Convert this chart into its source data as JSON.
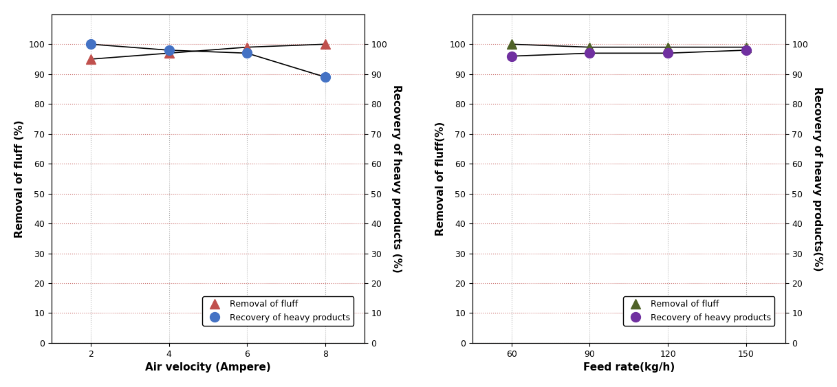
{
  "left": {
    "x": [
      2,
      4,
      6,
      8
    ],
    "removal_fluff": [
      95,
      97,
      99,
      100
    ],
    "recovery_heavy": [
      100,
      98,
      97,
      89
    ],
    "xlabel": "Air velocity (Ampere)",
    "ylabel_left": "Removal of fluff (%)",
    "ylabel_right": "Recovery of heavy products (%)",
    "fluff_color": "#C0504D",
    "heavy_color": "#4472C4",
    "line_color": "#000000",
    "xlim": [
      1,
      9
    ],
    "xticks": [
      2,
      4,
      6,
      8
    ],
    "ylim": [
      0,
      110
    ],
    "yticks": [
      0,
      10,
      20,
      30,
      40,
      50,
      60,
      70,
      80,
      90,
      100
    ]
  },
  "right": {
    "x": [
      60,
      90,
      120,
      150
    ],
    "removal_fluff": [
      100,
      99,
      99,
      99
    ],
    "recovery_heavy": [
      96,
      97,
      97,
      98
    ],
    "xlabel": "Feed rate(kg/h)",
    "ylabel_left": "Removal of fluff(%)",
    "ylabel_right": "Recovery of heavy products(%)",
    "fluff_color": "#4F6228",
    "heavy_color": "#7030A0",
    "line_color": "#000000",
    "xlim": [
      45,
      165
    ],
    "xticks": [
      60,
      90,
      120,
      150
    ],
    "ylim": [
      0,
      110
    ],
    "yticks": [
      0,
      10,
      20,
      30,
      40,
      50,
      60,
      70,
      80,
      90,
      100
    ]
  },
  "legend_labels": [
    "Removal of fluff",
    "Recovery of heavy products"
  ],
  "marker_size": 10,
  "line_width": 1.2,
  "font_size_label": 11,
  "font_size_tick": 9,
  "font_size_legend": 9,
  "grid_color_y": "#C0504D",
  "grid_color_x": "#808080"
}
